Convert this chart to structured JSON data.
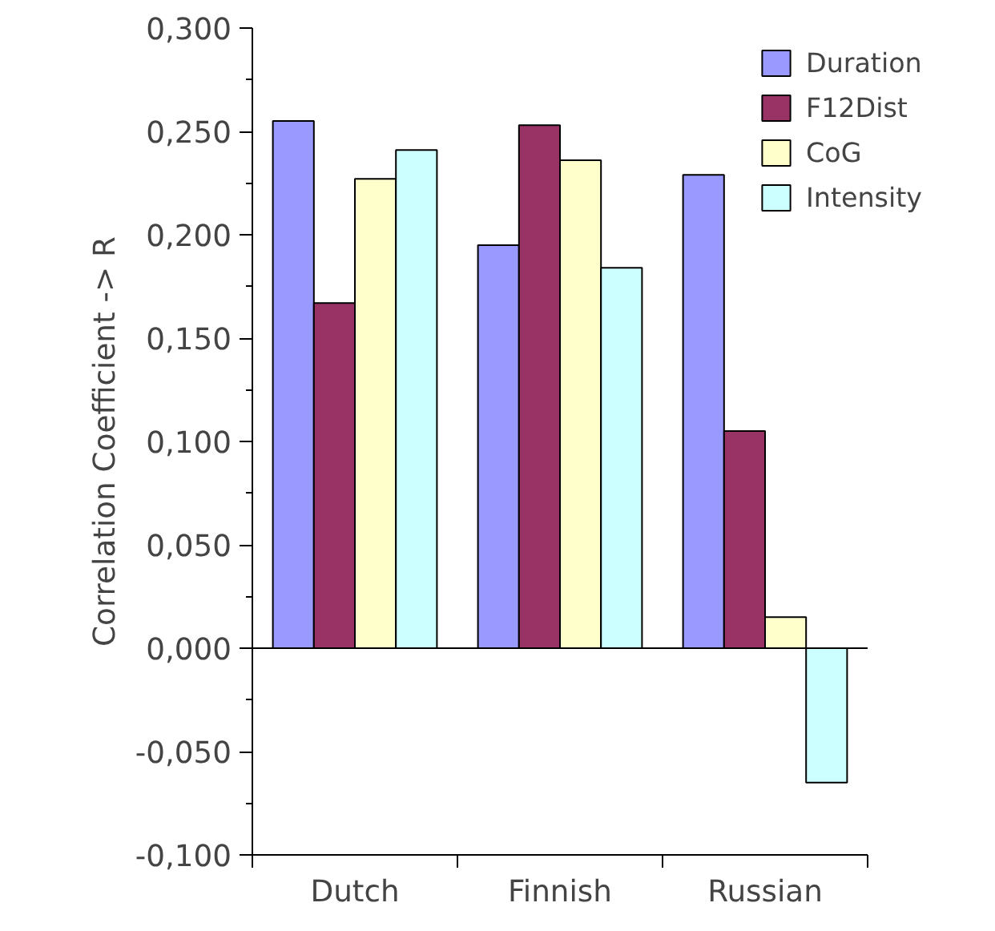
{
  "chart_data": {
    "type": "bar",
    "ylabel": "Correlation Coefficient -> R",
    "categories": [
      "Dutch",
      "Finnish",
      "Russian"
    ],
    "series": [
      {
        "name": "Duration",
        "color": "#9999ff",
        "values": [
          0.255,
          0.195,
          0.229
        ]
      },
      {
        "name": "F12Dist",
        "color": "#993366",
        "values": [
          0.167,
          0.253,
          0.105
        ]
      },
      {
        "name": "CoG",
        "color": "#ffffcc",
        "values": [
          0.227,
          0.236,
          0.015
        ]
      },
      {
        "name": "Intensity",
        "color": "#ccffff",
        "values": [
          0.241,
          0.184,
          -0.065
        ]
      }
    ],
    "ylim": [
      -0.1,
      0.3
    ],
    "yticks": [
      {
        "value": -0.1,
        "label": "-0,100"
      },
      {
        "value": -0.05,
        "label": "-0,050"
      },
      {
        "value": 0,
        "label": "0,000"
      },
      {
        "value": 0.05,
        "label": "0,050"
      },
      {
        "value": 0.1,
        "label": "0,100"
      },
      {
        "value": 0.15,
        "label": "0,150"
      },
      {
        "value": 0.2,
        "label": "0,200"
      },
      {
        "value": 0.25,
        "label": "0,250"
      },
      {
        "value": 0.3,
        "label": "0,300"
      }
    ],
    "ref_lines": [
      {
        "axis": "y",
        "value": 0
      }
    ],
    "grid": false,
    "legend": "top right"
  }
}
